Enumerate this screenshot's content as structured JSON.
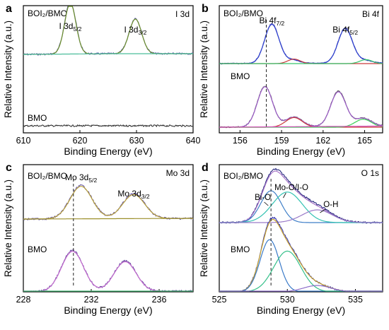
{
  "figure": {
    "xlabel": "Binding Energy (eV)",
    "ylabel": "Relative Intensity (a.u.)"
  },
  "chart_data": [
    {
      "type": "line",
      "panel_label": "a",
      "corner_label": "I 3d",
      "xlabel": "Binding Energy (eV)",
      "ylabel": "Relative Intensity (a.u.)",
      "xlim": [
        610,
        640
      ],
      "xticks": [
        "610",
        "620",
        "630",
        "640"
      ],
      "samples": [
        "BOI₂/BMO",
        "BMO"
      ],
      "annotations": [
        {
          "base": "I 3d",
          "sub": "5/2",
          "x": 618.3
        },
        {
          "base": "I 3d",
          "sub": "3/2",
          "x": 629.8
        }
      ],
      "series": [
        {
          "sample": "BOI₂/BMO",
          "role": "raw",
          "color": "#5a55a8",
          "peaks": [
            [
              618.3,
              0.74,
              1.0
            ],
            [
              629.8,
              0.5,
              1.1
            ]
          ],
          "baseline": [
            [
              610,
              0.11
            ],
            [
              625,
              0.12
            ],
            [
              640,
              0.12
            ]
          ]
        },
        {
          "sample": "BOI₂/BMO",
          "role": "fit",
          "color": "#6b8f2a",
          "peaks": [
            [
              618.3,
              0.72,
              1.0
            ],
            [
              629.8,
              0.49,
              1.1
            ]
          ],
          "baseline": [
            [
              610,
              0.11
            ],
            [
              625,
              0.12
            ],
            [
              640,
              0.12
            ]
          ]
        },
        {
          "sample": "BOI₂/BMO",
          "role": "background",
          "color": "#4bbd9a",
          "peaks": [],
          "baseline": [
            [
              610,
              0.11
            ],
            [
              625,
              0.12
            ],
            [
              640,
              0.12
            ]
          ]
        },
        {
          "sample": "BMO",
          "role": "raw",
          "color": "#333333",
          "peaks": [],
          "baseline": [
            [
              610,
              0.0
            ],
            [
              640,
              0.0
            ]
          ]
        }
      ]
    },
    {
      "type": "line",
      "panel_label": "b",
      "corner_label": "Bi 4f",
      "xlabel": "Binding Energy (eV)",
      "ylabel": "Relative Intensity (a.u.)",
      "xlim": [
        154.5,
        166.3
      ],
      "xticks": [
        "156",
        "159",
        "162",
        "165"
      ],
      "samples": [
        "BOI₂/BMO",
        "BMO"
      ],
      "annotations": [
        {
          "base": "Bi 4f",
          "sub": "7/2",
          "x": 158.3
        },
        {
          "base": "Bi 4f",
          "sub": "5/2",
          "x": 163.6
        }
      ],
      "series": [
        {
          "sample": "BOI₂/BMO",
          "role": "raw",
          "color": "#5a55a8",
          "peaks": [
            [
              158.3,
              0.7,
              0.52
            ],
            [
              163.6,
              0.62,
              0.52
            ],
            [
              159.8,
              0.06,
              0.5
            ],
            [
              165.0,
              0.05,
              0.5
            ]
          ],
          "baseline": [
            [
              154.5,
              0.0
            ],
            [
              166.3,
              0.01
            ]
          ]
        },
        {
          "sample": "BOI₂/BMO",
          "role": "fit",
          "color": "#2b3fd0",
          "peaks": [
            [
              158.3,
              0.69,
              0.52
            ],
            [
              163.6,
              0.61,
              0.52
            ],
            [
              159.8,
              0.06,
              0.5
            ],
            [
              165.0,
              0.05,
              0.5
            ]
          ],
          "baseline": [
            [
              154.5,
              0.0
            ],
            [
              166.3,
              0.01
            ]
          ]
        },
        {
          "sample": "BOI₂/BMO",
          "role": "component",
          "color": "#c93a3a",
          "peaks": [
            [
              159.9,
              0.08,
              0.45
            ]
          ],
          "baseline": []
        },
        {
          "sample": "BOI₂/BMO",
          "role": "component",
          "color": "#36c36a",
          "peaks": [
            [
              165.1,
              0.07,
              0.45
            ]
          ],
          "baseline": []
        },
        {
          "sample": "BMO",
          "role": "raw",
          "color": "#555555",
          "peaks": [
            [
              157.8,
              0.72,
              0.55
            ],
            [
              163.1,
              0.62,
              0.55
            ],
            [
              159.9,
              0.17,
              0.6
            ],
            [
              164.9,
              0.14,
              0.6
            ]
          ],
          "baseline": [
            [
              154.5,
              0.0
            ],
            [
              166.3,
              0.02
            ]
          ]
        },
        {
          "sample": "BMO",
          "role": "fit",
          "color": "#9c5cc8",
          "peaks": [
            [
              157.8,
              0.71,
              0.55
            ],
            [
              163.1,
              0.61,
              0.55
            ],
            [
              159.9,
              0.17,
              0.6
            ],
            [
              164.9,
              0.14,
              0.6
            ]
          ],
          "baseline": [
            [
              154.5,
              0.0
            ],
            [
              166.3,
              0.02
            ]
          ]
        },
        {
          "sample": "BMO",
          "role": "component",
          "color": "#c93a3a",
          "peaks": [
            [
              159.9,
              0.17,
              0.6
            ]
          ],
          "baseline": []
        },
        {
          "sample": "BMO",
          "role": "component",
          "color": "#3fcf5a",
          "peaks": [
            [
              164.9,
              0.14,
              0.6
            ]
          ],
          "baseline": []
        },
        {
          "sample": "BMO",
          "role": "background",
          "color": "#d24fb8",
          "peaks": [],
          "baseline": [
            [
              154.5,
              0.0
            ],
            [
              166.3,
              0.02
            ]
          ]
        }
      ]
    },
    {
      "type": "line",
      "panel_label": "c",
      "corner_label": "Mo 3d",
      "xlabel": "Binding Energy (eV)",
      "ylabel": "Relative Intensity (a.u.)",
      "xlim": [
        228,
        238
      ],
      "xticks": [
        "228",
        "232",
        "236"
      ],
      "samples": [
        "BOI₂/BMO",
        "BMO"
      ],
      "annotations": [
        {
          "base": "Mo 3d",
          "sub": "5/2",
          "x": 231.4
        },
        {
          "base": "Mo 3d",
          "sub": "3/2",
          "x": 234.5
        }
      ],
      "series": [
        {
          "sample": "BOI₂/BMO",
          "role": "raw",
          "color": "#6a5aa8",
          "peaks": [
            [
              231.4,
              0.47,
              0.65
            ],
            [
              234.5,
              0.35,
              0.65
            ]
          ],
          "baseline": [
            [
              228,
              0.0
            ],
            [
              238,
              0.01
            ]
          ]
        },
        {
          "sample": "BOI₂/BMO",
          "role": "fit",
          "color": "#b9a33a",
          "peaks": [
            [
              231.4,
              0.46,
              0.65
            ],
            [
              234.5,
              0.34,
              0.65
            ]
          ],
          "baseline": [
            [
              228,
              0.0
            ],
            [
              238,
              0.01
            ]
          ]
        },
        {
          "sample": "BOI₂/BMO",
          "role": "background",
          "color": "#9c8f2a",
          "peaks": [],
          "baseline": [
            [
              228,
              0.0
            ],
            [
              238,
              0.01
            ]
          ]
        },
        {
          "sample": "BMO",
          "role": "raw",
          "color": "#6a4aa0",
          "peaks": [
            [
              230.9,
              0.58,
              0.65
            ],
            [
              234.0,
              0.43,
              0.65
            ]
          ],
          "baseline": [
            [
              228,
              0.0
            ],
            [
              238,
              0.01
            ]
          ]
        },
        {
          "sample": "BMO",
          "role": "fit",
          "color": "#c66fd0",
          "peaks": [
            [
              230.9,
              0.57,
              0.65
            ],
            [
              234.0,
              0.42,
              0.65
            ]
          ],
          "baseline": [
            [
              228,
              0.0
            ],
            [
              238,
              0.01
            ]
          ]
        },
        {
          "sample": "BMO",
          "role": "background",
          "color": "#3cb56e",
          "peaks": [],
          "baseline": [
            [
              228,
              0.0
            ],
            [
              238,
              0.01
            ]
          ]
        }
      ]
    },
    {
      "type": "line",
      "panel_label": "d",
      "corner_label": "O 1s",
      "xlabel": "Binding Energy (eV)",
      "ylabel": "Relative Intensity (a.u.)",
      "xlim": [
        525,
        537
      ],
      "xticks": [
        "525",
        "530",
        "535"
      ],
      "samples": [
        "BOI₂/BMO",
        "BMO"
      ],
      "annotations": [
        {
          "text": "Bi-O",
          "x": 528.7
        },
        {
          "text": "Mo-O/I-O",
          "x": 529.8
        },
        {
          "text": "O-H",
          "x": 532.0
        }
      ],
      "series": [
        {
          "sample": "BOI₂/BMO",
          "role": "raw",
          "color": "#2a2a80",
          "peaks": [
            [
              528.8,
              0.26,
              0.75
            ],
            [
              530.0,
              0.25,
              1.1
            ],
            [
              532.2,
              0.11,
              1.1
            ]
          ],
          "baseline": [
            [
              525,
              0.0
            ],
            [
              537,
              0.0
            ]
          ]
        },
        {
          "sample": "BOI₂/BMO",
          "role": "fit",
          "color": "#a875c8",
          "peaks": [
            [
              528.8,
              0.25,
              0.75
            ],
            [
              530.0,
              0.24,
              1.1
            ],
            [
              532.2,
              0.1,
              1.1
            ]
          ],
          "baseline": [
            [
              525,
              0.0
            ],
            [
              537,
              0.0
            ]
          ]
        },
        {
          "sample": "BOI₂/BMO",
          "role": "component",
          "color": "#3f7fc8",
          "peaks": [
            [
              528.8,
              0.25,
              0.75
            ]
          ],
          "baseline": []
        },
        {
          "sample": "BOI₂/BMO",
          "role": "component",
          "color": "#33c2b2",
          "peaks": [
            [
              530.0,
              0.24,
              1.1
            ]
          ],
          "baseline": []
        },
        {
          "sample": "BOI₂/BMO",
          "role": "component",
          "color": "#9a7ac8",
          "peaks": [
            [
              532.2,
              0.1,
              1.1
            ]
          ],
          "baseline": []
        },
        {
          "sample": "BMO",
          "role": "raw",
          "color": "#3a3ab0",
          "peaks": [
            [
              528.7,
              0.42,
              0.7
            ],
            [
              530.0,
              0.33,
              1.0
            ],
            [
              532.2,
              0.05,
              1.0
            ]
          ],
          "baseline": [
            [
              525,
              0.0
            ],
            [
              537,
              0.0
            ]
          ]
        },
        {
          "sample": "BMO",
          "role": "fit",
          "color": "#c9a22a",
          "peaks": [
            [
              528.7,
              0.41,
              0.7
            ],
            [
              530.0,
              0.32,
              1.0
            ],
            [
              532.2,
              0.05,
              1.0
            ]
          ],
          "baseline": [
            [
              525,
              0.0
            ],
            [
              537,
              0.0
            ]
          ]
        },
        {
          "sample": "BMO",
          "role": "component",
          "color": "#3a7ac8",
          "peaks": [
            [
              528.7,
              0.41,
              0.7
            ]
          ],
          "baseline": []
        },
        {
          "sample": "BMO",
          "role": "component",
          "color": "#35c08a",
          "peaks": [
            [
              530.0,
              0.32,
              1.0
            ]
          ],
          "baseline": []
        },
        {
          "sample": "BMO",
          "role": "component",
          "color": "#8a6ac8",
          "peaks": [
            [
              532.2,
              0.05,
              1.0
            ]
          ],
          "baseline": []
        }
      ]
    }
  ]
}
